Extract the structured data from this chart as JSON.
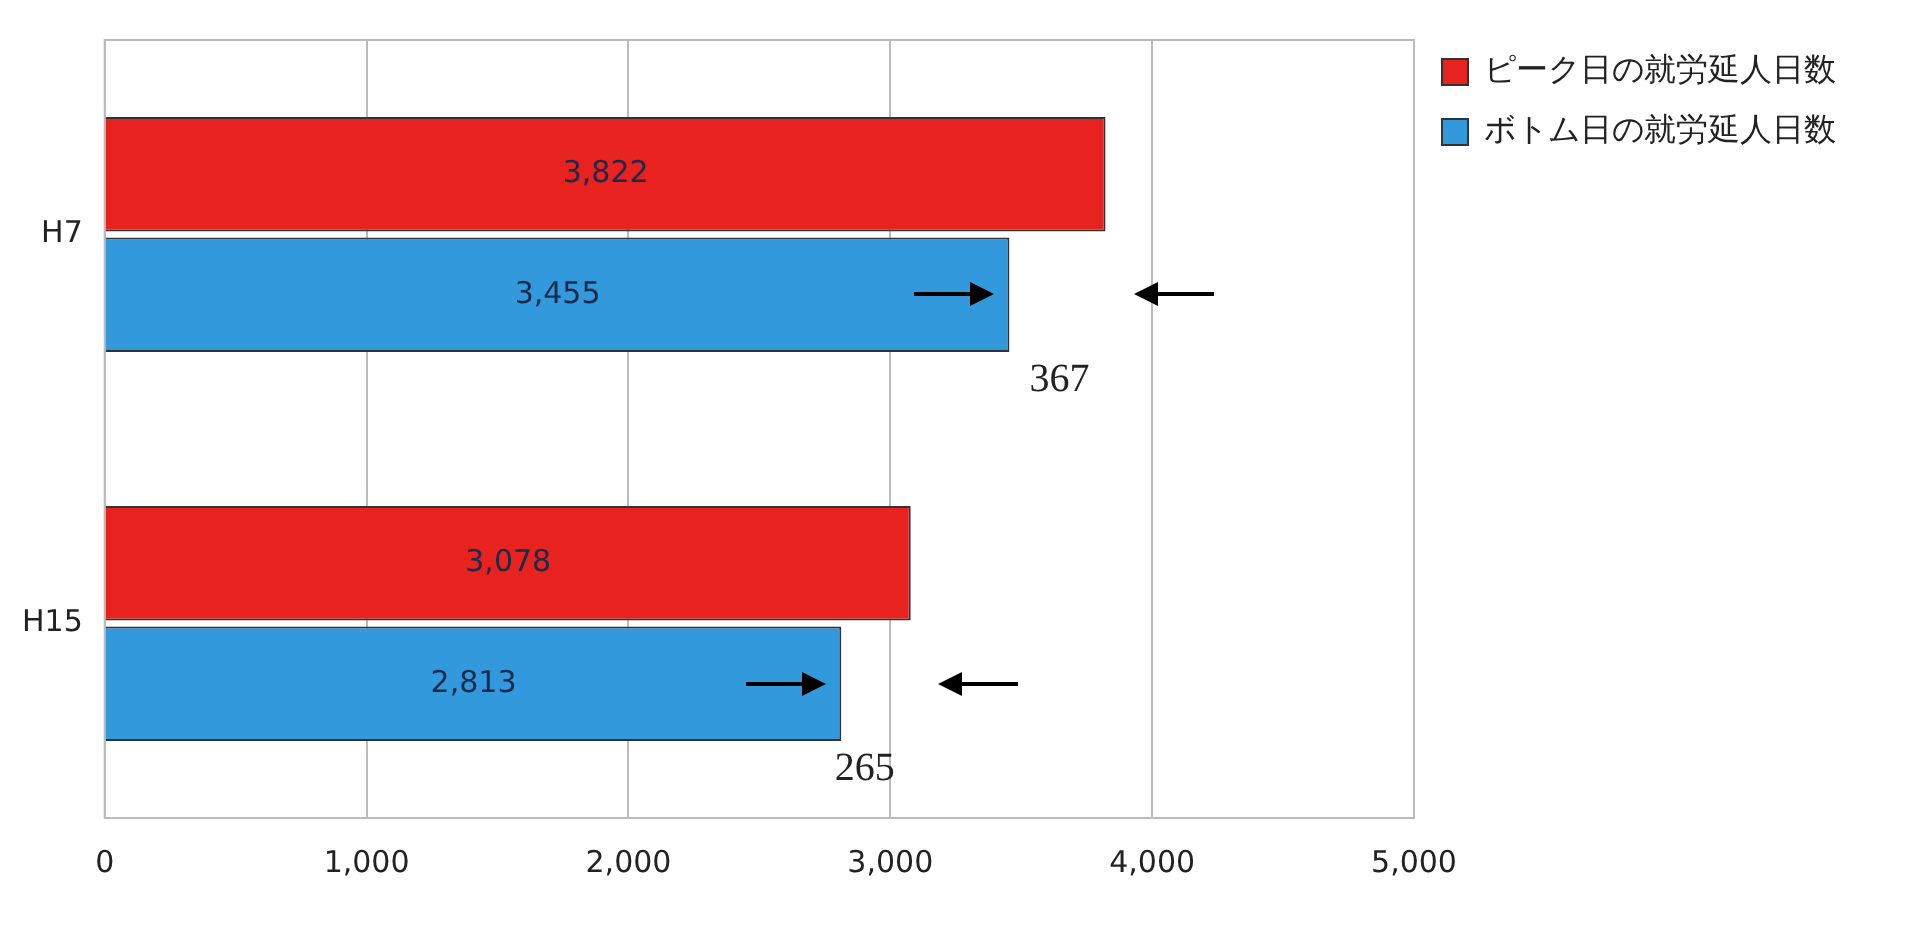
{
  "chart_data": {
    "type": "bar",
    "orientation": "horizontal",
    "categories": [
      "H7",
      "H15"
    ],
    "series": [
      {
        "name": "ピーク日の就労延人日数",
        "color": "#e8231f",
        "values": [
          3822,
          3078
        ],
        "value_labels": [
          "3,822",
          "3,078"
        ]
      },
      {
        "name": "ボトム日の就労延人日数",
        "color": "#3399dd",
        "values": [
          3455,
          2813
        ],
        "value_labels": [
          "3,455",
          "2,813"
        ]
      }
    ],
    "xlim": [
      0,
      5000
    ],
    "xticks": [
      0,
      {
        "value": 1000,
        "label": "1,000"
      },
      {
        "value": 2000,
        "label": "2,000"
      },
      {
        "value": 3000,
        "label": "3,000"
      },
      {
        "value": 4000,
        "label": "4,000"
      },
      {
        "value": 5000,
        "label": "5,000"
      }
    ],
    "grid": "x",
    "legend": "top right",
    "annotations": [
      "367",
      "265"
    ]
  }
}
